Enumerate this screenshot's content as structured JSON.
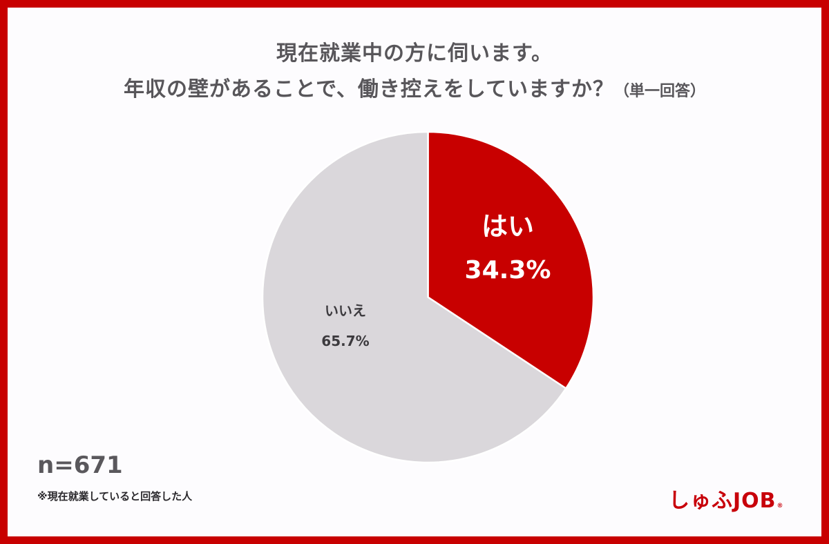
{
  "chart_data": {
    "type": "pie",
    "title": "現在就業中の方に伺います。 年収の壁があることで、働き控えをしていますか？（単一回答）",
    "categories": [
      "はい",
      "いいえ"
    ],
    "values": [
      34.3,
      65.7
    ],
    "unit": "%",
    "colors": [
      "#c80000",
      "#dad7db"
    ],
    "start_angle_deg": 0,
    "direction": "clockwise",
    "sample_size": 671,
    "legend": "none (labels inside slices)"
  },
  "title": {
    "line1": "現在就業中の方に伺います。",
    "line2": "年収の壁があることで、働き控えをしていますか？",
    "note": "（単一回答）"
  },
  "slices": {
    "yes": {
      "label": "はい",
      "value": "34.3%",
      "color": "#c80000"
    },
    "no": {
      "label": "いいえ",
      "value": "65.7%",
      "color": "#dad7db"
    }
  },
  "footer": {
    "n": "n=671",
    "note": "※現在就業していると回答した人"
  },
  "brand": {
    "name": "しゅふJOB",
    "registered": "®",
    "color": "#c8000a"
  },
  "frame_color": "#c80000"
}
